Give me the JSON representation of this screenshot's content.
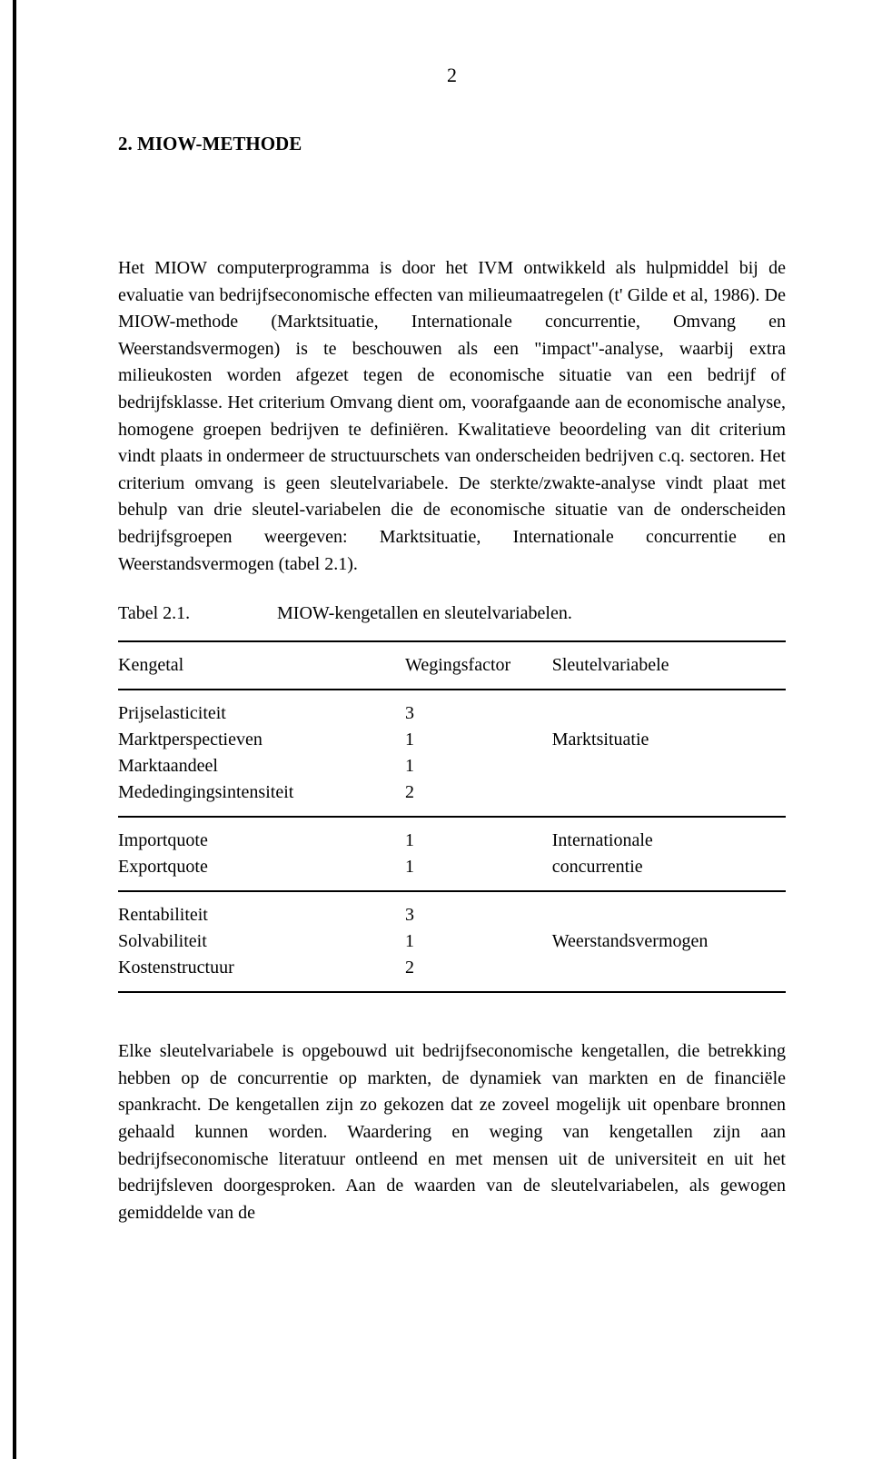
{
  "page_number": "2",
  "section_heading": "2. MIOW-METHODE",
  "paragraph1": "Het MIOW computerprogramma is door het IVM ontwikkeld als hulpmiddel bij de evaluatie van bedrijfseconomische effecten van milieumaatregelen (t' Gilde et al, 1986). De MIOW-methode (Marktsituatie, Internationale concurrentie, Omvang en Weerstandsvermogen) is te beschouwen als een \"impact\"-analyse, waarbij extra milieukosten worden afgezet tegen de economische situatie van een bedrijf of bedrijfsklasse. Het criterium Omvang dient om, voorafgaande aan de economische analyse, homogene groepen bedrijven te definiëren. Kwalitatieve beoordeling van dit criterium vindt plaats in ondermeer de structuurschets van onderscheiden bedrijven c.q. sectoren. Het criterium omvang is geen sleutelvariabele. De sterkte/zwakte-analyse vindt plaat met behulp van drie sleutel-variabelen die de economische situatie van de onderscheiden bedrijfsgroepen weergeven: Marktsituatie, Internationale concurrentie en Weerstandsvermogen (tabel 2.1).",
  "table_caption_label": "Tabel 2.1.",
  "table_caption_text": "MIOW-kengetallen en sleutelvariabelen.",
  "table": {
    "header": {
      "col1": "Kengetal",
      "col2": "Wegingsfactor",
      "col3": "Sleutelvariabele"
    },
    "groups": [
      {
        "rows": [
          {
            "col1": "Prijselasticiteit",
            "col2": "3",
            "col3": ""
          },
          {
            "col1": "Marktperspectieven",
            "col2": "1",
            "col3": "Marktsituatie"
          },
          {
            "col1": "Marktaandeel",
            "col2": "1",
            "col3": ""
          },
          {
            "col1": "Mededingingsintensiteit",
            "col2": "2",
            "col3": ""
          }
        ]
      },
      {
        "rows": [
          {
            "col1": "Importquote",
            "col2": "1",
            "col3": "Internationale"
          },
          {
            "col1": "Exportquote",
            "col2": "1",
            "col3": "concurrentie"
          }
        ]
      },
      {
        "rows": [
          {
            "col1": "Rentabiliteit",
            "col2": "3",
            "col3": ""
          },
          {
            "col1": "Solvabiliteit",
            "col2": "1",
            "col3": "Weerstandsvermogen"
          },
          {
            "col1": "Kostenstructuur",
            "col2": "2",
            "col3": ""
          }
        ]
      }
    ]
  },
  "paragraph2": "Elke sleutelvariabele is opgebouwd uit bedrijfseconomische kengetallen, die betrekking hebben op de concurrentie op markten, de dynamiek van markten en de financiële spankracht. De kengetallen zijn zo gekozen dat ze zoveel mogelijk uit openbare bronnen gehaald kunnen worden. Waardering en weging van kengetallen zijn aan bedrijfseconomische literatuur ontleend en met mensen uit de universiteit en uit het bedrijfsleven doorgesproken. Aan de waarden van de sleutelvariabelen, als gewogen gemiddelde van de"
}
